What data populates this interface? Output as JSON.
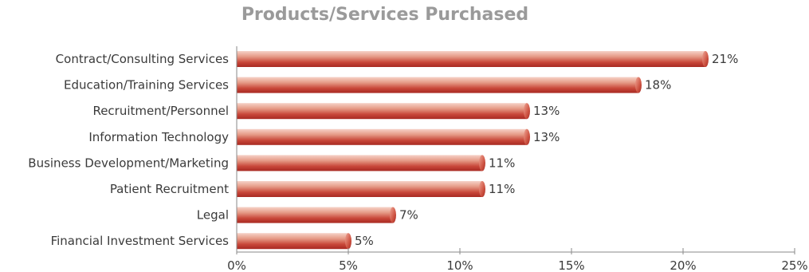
{
  "chart_data": {
    "type": "bar",
    "orientation": "horizontal",
    "title": "Products/Services Purchased",
    "categories": [
      "Contract/Consulting Services",
      "Education/Training Services",
      "Recruitment/Personnel",
      "Information Technology",
      "Business Development/Marketing",
      "Patient Recruitment",
      "Legal",
      "Financial Investment Services"
    ],
    "values": [
      21,
      18,
      13,
      13,
      11,
      11,
      7,
      5
    ],
    "value_labels": [
      "21%",
      "18%",
      "13%",
      "13%",
      "11%",
      "11%",
      "7%",
      "5%"
    ],
    "xlim": [
      0,
      25
    ],
    "xticks": [
      0,
      5,
      10,
      15,
      20,
      25
    ],
    "xtick_labels": [
      "0%",
      "5%",
      "10%",
      "15%",
      "20%",
      "25%"
    ],
    "bar_color": "#c0392b",
    "grid": false,
    "legend": "none"
  }
}
